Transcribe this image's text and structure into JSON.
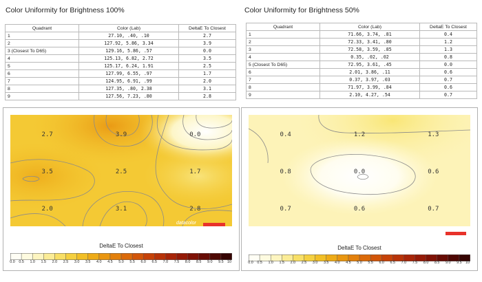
{
  "panels": [
    {
      "title": "Color Uniformity for Brightness 100%",
      "table": {
        "headers": [
          "Quadrant",
          "Color (Lab)",
          "DeltaE To Closest"
        ],
        "rows": [
          {
            "q": "1",
            "lab": "27.10,     .40,    .10",
            "de": "2.7"
          },
          {
            "q": "2",
            "lab": "127.92,    5.86,   3.34",
            "de": "3.9"
          },
          {
            "q": "3 (Closest To D65)",
            "lab": "129.16,    5.86,    .57",
            "de": "0.0"
          },
          {
            "q": "4",
            "lab": "125.13,    6.82,   2.72",
            "de": "3.5"
          },
          {
            "q": "5",
            "lab": "125.17,    6.24,   1.91",
            "de": "2.5"
          },
          {
            "q": "6",
            "lab": "127.99,    6.55,    .97",
            "de": "1.7"
          },
          {
            "q": "7",
            "lab": "124.95,    6.91,    .99",
            "de": "2.0"
          },
          {
            "q": "8",
            "lab": "127.35,     .80,   2.38",
            "de": "3.1"
          },
          {
            "q": "9",
            "lab": "127.56,    7.23,    .80",
            "de": "2.8"
          }
        ]
      }
    },
    {
      "title": "Color Uniformity for Brightness 50%",
      "table": {
        "headers": [
          "Quadrant",
          "Color (Lab)",
          "DeltaE To Closest"
        ],
        "rows": [
          {
            "q": "1",
            "lab": "71.66,    3.74,    .81",
            "de": "0.4"
          },
          {
            "q": "2",
            "lab": "72.33,    3.41,    .80",
            "de": "1.2"
          },
          {
            "q": "3",
            "lab": "72.58,    3.59,    .85",
            "de": "1.3"
          },
          {
            "q": "4",
            "lab": "0.35,     .02,    .02",
            "de": "0.8"
          },
          {
            "q": "5 (Closest To D65)",
            "lab": "72.95,    3.61,    .45",
            "de": "0.0"
          },
          {
            "q": "6",
            "lab": "2.01,    3.86,    .11",
            "de": "0.6"
          },
          {
            "q": "7",
            "lab": "0.37,    3.97,    .03",
            "de": "0.7"
          },
          {
            "q": "8",
            "lab": "71.97,    3.99,    .84",
            "de": "0.6"
          },
          {
            "q": "9",
            "lab": "2.10,    4.27,    .54",
            "de": "0.7"
          }
        ]
      }
    }
  ],
  "heatmap_labels": {
    "scale_title": "DeltaE To Closest",
    "logo": "datacolor"
  },
  "colors": {
    "low": "#fffce8",
    "mid": "#f6d12a",
    "high": "#ec9a10",
    "brand_bar": "#e8322a"
  },
  "chart_data": [
    {
      "type": "heatmap",
      "title": "",
      "grid": "3x3",
      "values": [
        [
          2.7,
          3.9,
          0.0
        ],
        [
          3.5,
          2.5,
          1.7
        ],
        [
          2.0,
          3.1,
          2.8
        ]
      ],
      "value_labels": [
        [
          "2.7",
          "3.9",
          "0.0"
        ],
        [
          "3.5",
          "2.5",
          "1.7"
        ],
        [
          "2.0",
          "3.1",
          "2.8"
        ]
      ],
      "colorbar_label": "DeltaE To Closest",
      "colorbar_ticks": [
        "0.0",
        "0.5",
        "1.0",
        "1.5",
        "2.0",
        "2.5",
        "3.0",
        "3.5",
        "4.0",
        "4.5",
        "5.0",
        "5.5",
        "6.0",
        "6.5",
        "7.0",
        "7.5",
        "8.0",
        "8.5",
        "9.0",
        "9.5",
        "10"
      ],
      "colorbar_range": [
        0,
        10
      ]
    },
    {
      "type": "heatmap",
      "title": "",
      "grid": "3x3",
      "values": [
        [
          0.4,
          1.2,
          1.3
        ],
        [
          0.8,
          0.0,
          0.6
        ],
        [
          0.7,
          0.6,
          0.7
        ]
      ],
      "value_labels": [
        [
          "0.4",
          "1.2",
          "1.3"
        ],
        [
          "0.8",
          "0.0",
          "0.6"
        ],
        [
          "0.7",
          "0.6",
          "0.7"
        ]
      ],
      "colorbar_label": "DeltaE To Closest",
      "colorbar_ticks": [
        "0.0",
        "0.5",
        "1.0",
        "1.5",
        "2.0",
        "2.5",
        "3.0",
        "3.5",
        "4.0",
        "4.5",
        "5.0",
        "5.5",
        "6.0",
        "6.5",
        "7.0",
        "7.5",
        "8.0",
        "8.5",
        "9.0",
        "9.5",
        "10"
      ],
      "colorbar_range": [
        0,
        10
      ]
    }
  ]
}
